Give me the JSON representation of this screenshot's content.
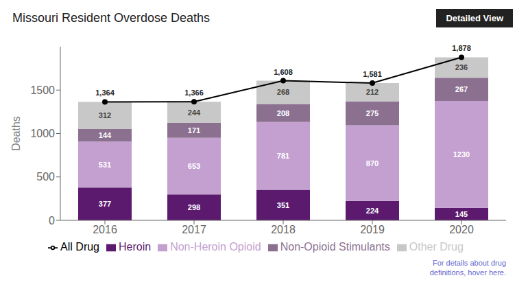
{
  "chart_data": {
    "type": "bar",
    "stacked": true,
    "title": "Missouri Resident Overdose Deaths",
    "ylabel": "Deaths",
    "categories": [
      "2016",
      "2017",
      "2018",
      "2019",
      "2020"
    ],
    "series": [
      {
        "name": "Heroin",
        "color": "#5C1A6E",
        "values": [
          377,
          298,
          351,
          224,
          145
        ]
      },
      {
        "name": "Non-Heroin Opioid",
        "color": "#C4A0D0",
        "values": [
          531,
          653,
          781,
          870,
          1230
        ]
      },
      {
        "name": "Non-Opioid Stimulants",
        "color": "#8C7090",
        "values": [
          144,
          171,
          208,
          275,
          267
        ]
      },
      {
        "name": "Other Drug",
        "color": "#C8C8C8",
        "values": [
          312,
          244,
          268,
          212,
          236
        ]
      },
      {
        "name": "All Drug",
        "type": "line",
        "color": "#000000",
        "marker": "circle",
        "values": [
          1364,
          1366,
          1608,
          1581,
          1878
        ],
        "value_labels": [
          "1,364",
          "1,366",
          "1,608",
          "1,581",
          "1,878"
        ]
      }
    ],
    "ylim": [
      0,
      2000
    ],
    "yticks": [
      0,
      500,
      1000,
      1500
    ],
    "grid": false,
    "legend": "bottom",
    "data_labels": true,
    "annotations": [
      "Detailed View",
      "For details about drug\ndefinitions, hover here."
    ]
  }
}
